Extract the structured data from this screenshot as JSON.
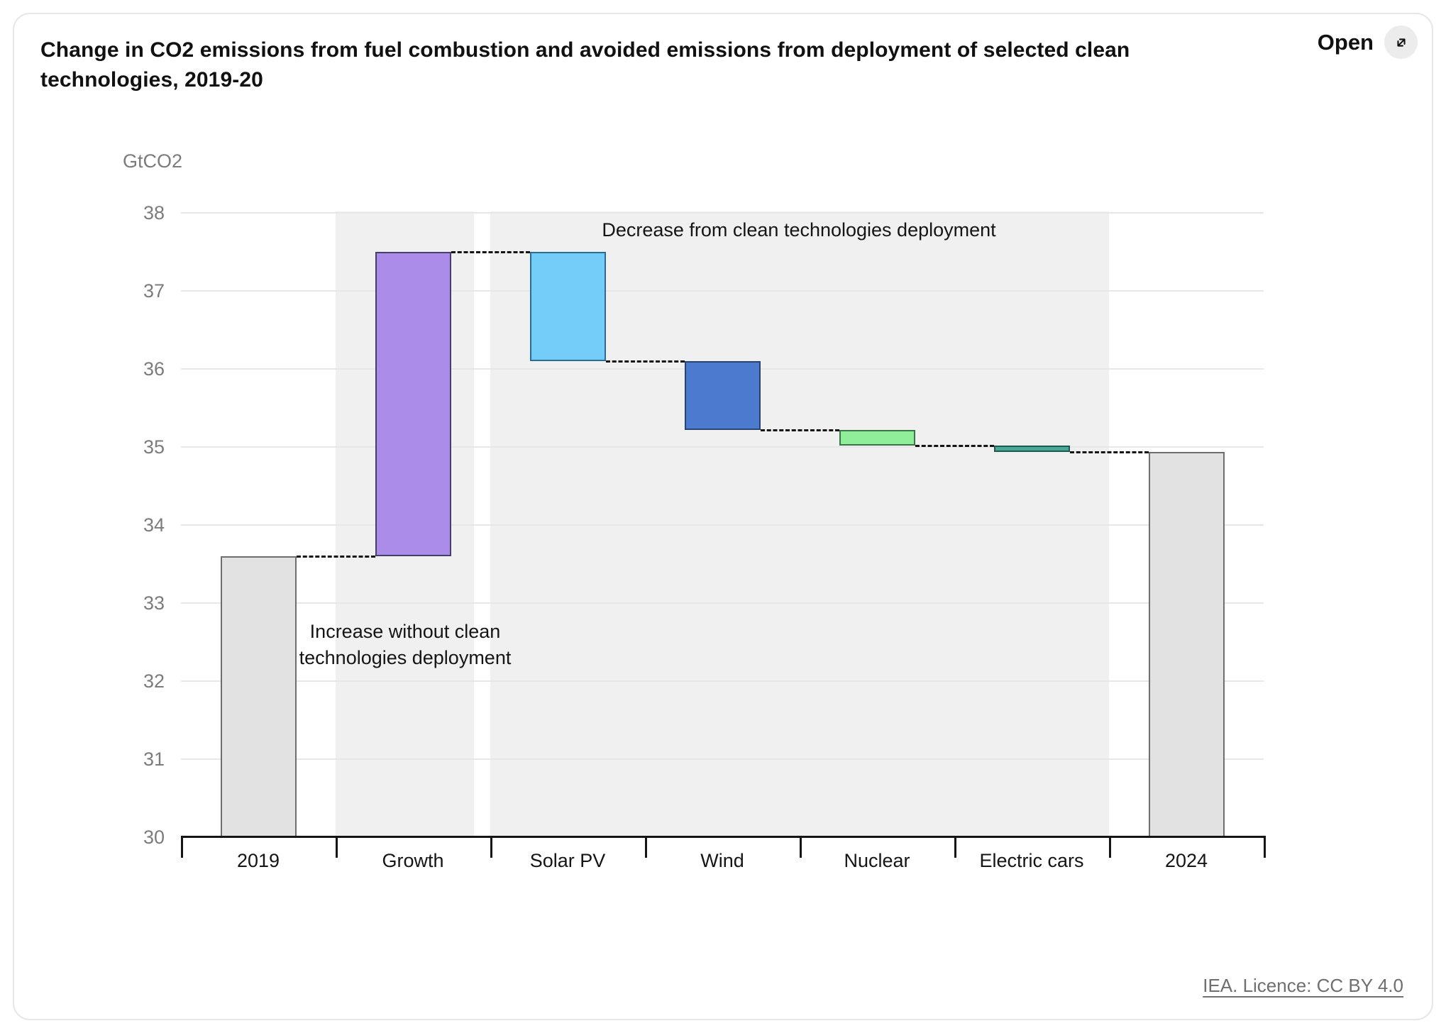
{
  "header": {
    "title": "Change in CO2 emissions from fuel combustion and avoided emissions from deployment of selected clean technologies, 2019-20",
    "open_label": "Open",
    "open_icon": "expand-diagonal-arrow-icon"
  },
  "footer": {
    "licence_link": "IEA. Licence: CC BY 4.0"
  },
  "chart_data": {
    "type": "waterfall",
    "title": "Change in CO2 emissions from fuel combustion and avoided emissions from deployment of selected clean technologies, 2019-20",
    "ylabel": "GtCO2",
    "xlabel": "",
    "grid": true,
    "y_axis": {
      "min": 30,
      "max": 38,
      "tick_step": 1,
      "ticks": [
        30,
        31,
        32,
        33,
        34,
        35,
        36,
        37,
        38
      ]
    },
    "categories": [
      "2019",
      "Growth",
      "Solar PV",
      "Wind",
      "Nuclear",
      "Electric cars",
      "2024"
    ],
    "bars": [
      {
        "label": "2019",
        "start": 30,
        "end": 33.6,
        "role": "total",
        "fill": "#e2e2e2",
        "stroke": "#6e6e6e"
      },
      {
        "label": "Growth",
        "start": 33.6,
        "end": 37.5,
        "role": "increase",
        "fill": "#ab8ce8",
        "stroke": "#45406b"
      },
      {
        "label": "Solar PV",
        "start": 37.5,
        "end": 36.1,
        "role": "decrease",
        "fill": "#74cdf9",
        "stroke": "#2b6c94"
      },
      {
        "label": "Wind",
        "start": 36.1,
        "end": 35.22,
        "role": "decrease",
        "fill": "#4c7ace",
        "stroke": "#2a4472"
      },
      {
        "label": "Nuclear",
        "start": 35.22,
        "end": 35.02,
        "role": "decrease",
        "fill": "#90ee9b",
        "stroke": "#3a7547"
      },
      {
        "label": "Electric cars",
        "start": 35.02,
        "end": 34.94,
        "role": "decrease",
        "fill": "#4aa897",
        "stroke": "#1f5a50"
      },
      {
        "label": "2024",
        "start": 30,
        "end": 34.94,
        "role": "total",
        "fill": "#e2e2e2",
        "stroke": "#6e6e6e"
      }
    ],
    "shaded_regions": [
      {
        "from": 1,
        "to": 1,
        "zone": "increase-zone",
        "gap_right": true
      },
      {
        "from": 2,
        "to": 5,
        "zone": "decrease-zone",
        "gap_right": false
      }
    ],
    "annotations": [
      {
        "id": "increase",
        "text": "Increase without clean technologies deployment"
      },
      {
        "id": "decrease",
        "text": "Decrease from clean technologies deployment"
      }
    ],
    "colors": {
      "band": "#f0f0f0",
      "grid": "#e7e7e7",
      "axis": "#151515",
      "connector": "#151515",
      "tick_text": "#7c7c7c",
      "label_text": "#151515"
    },
    "legend_position": "none"
  }
}
